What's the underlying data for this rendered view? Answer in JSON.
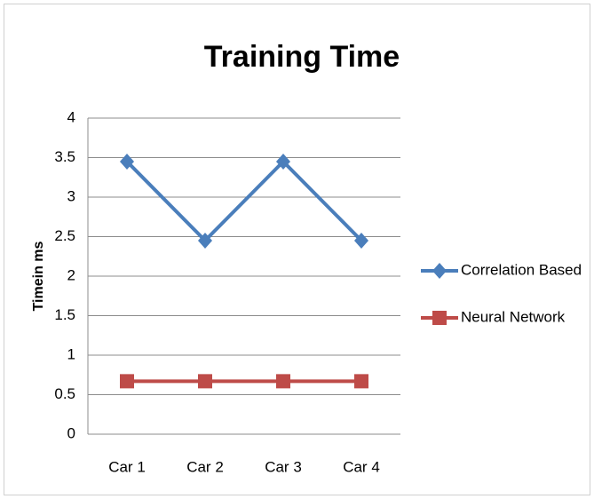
{
  "chart_data": {
    "type": "line",
    "title": "Training Time",
    "y_label": "Timein ms",
    "categories": [
      "Car 1",
      "Car 2",
      "Car 3",
      "Car 4"
    ],
    "series": [
      {
        "name": "Correlation Based",
        "color": "#4a7ebb",
        "marker": "diamond",
        "values": [
          3.45,
          2.45,
          3.45,
          2.45
        ]
      },
      {
        "name": "Neural Network",
        "color": "#be4b48",
        "marker": "square",
        "values": [
          0.67,
          0.67,
          0.67,
          0.67
        ]
      }
    ],
    "ylim": [
      0,
      4
    ],
    "yticks": [
      0,
      0.5,
      1,
      1.5,
      2,
      2.5,
      3,
      3.5,
      4
    ],
    "grid": true,
    "legend": "right"
  }
}
